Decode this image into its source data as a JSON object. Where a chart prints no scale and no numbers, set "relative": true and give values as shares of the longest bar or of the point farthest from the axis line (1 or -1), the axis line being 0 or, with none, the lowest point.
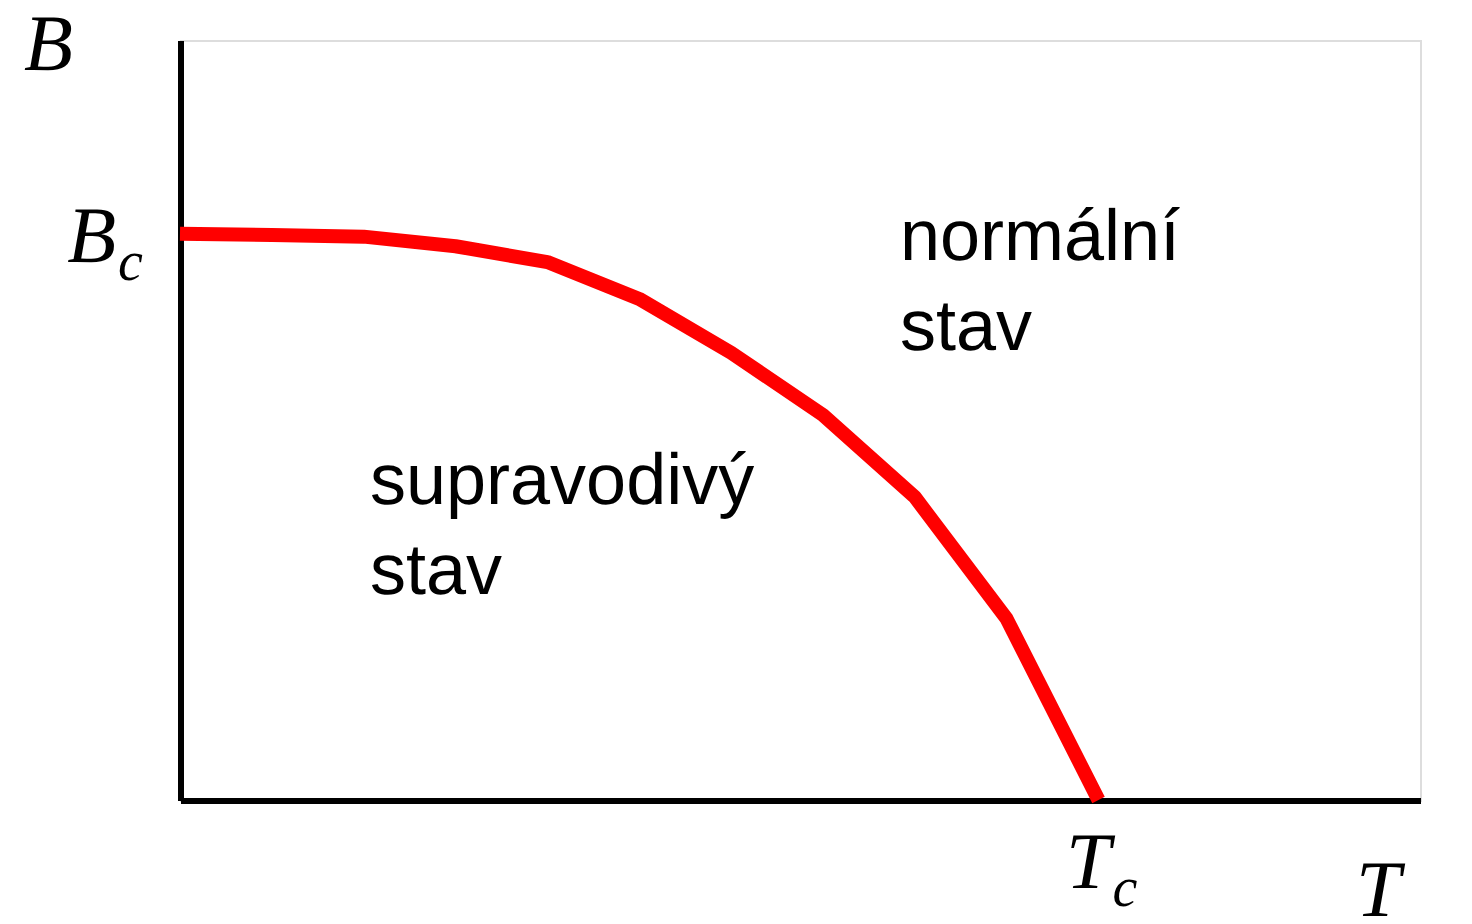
{
  "chart_data": {
    "type": "line",
    "relative": true,
    "xlabel": "T",
    "ylabel": "B",
    "categories": [
      null,
      null,
      null,
      null,
      null,
      null,
      null,
      null,
      null,
      null,
      null,
      null,
      null,
      null
    ],
    "series": [
      {
        "color": "#ff0000",
        "values": [
          1,
          0.998,
          0.995,
          0.978,
          0.95,
          0.885,
          0.79,
          0.68,
          0.535,
          0.32,
          0,
          null,
          null,
          null
        ]
      }
    ],
    "annotations": [
      "B$_{c}$",
      "T$_{c}$",
      "normální\nstav",
      "supravodivý\nstav"
    ],
    "grid": false,
    "marker": "none",
    "line_style": "solid"
  }
}
